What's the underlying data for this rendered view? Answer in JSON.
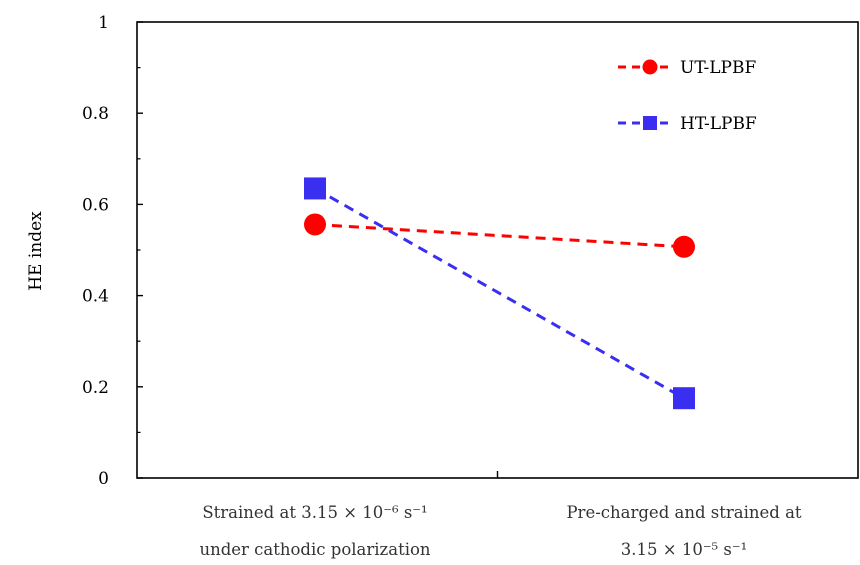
{
  "chart_data": {
    "type": "line",
    "title": "",
    "xlabel": "",
    "ylabel": "HE index",
    "ylim": [
      0,
      1
    ],
    "yticks": [
      "0",
      "0.2",
      "0.4",
      "0.6",
      "0.8",
      "1"
    ],
    "categories": [
      [
        "Strained at 3.15 × 10⁻⁶ s⁻¹",
        "under cathodic polarization"
      ],
      [
        "Pre-charged and strained at",
        "3.15 × 10⁻⁵ s⁻¹"
      ]
    ],
    "series": [
      {
        "name": "UT-LPBF",
        "values": [
          0.556,
          0.507
        ],
        "color": "#ff0000",
        "marker": "circle",
        "line_style": "dashed"
      },
      {
        "name": "HT-LPBF",
        "values": [
          0.635,
          0.175
        ],
        "color": "#3a2ff0",
        "marker": "square",
        "line_style": "dashed"
      }
    ],
    "legend_position": "top-right",
    "grid": false
  }
}
